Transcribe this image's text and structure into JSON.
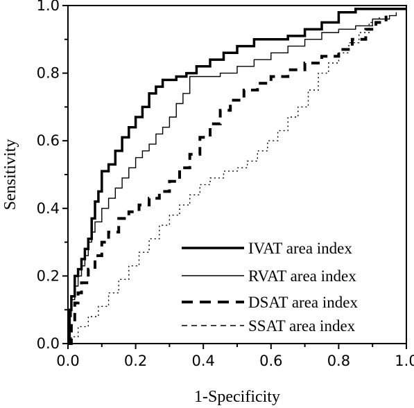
{
  "chart_data": {
    "type": "line",
    "xlabel": "1-Specificity",
    "ylabel": "Sensitivity",
    "xlim": [
      0.0,
      1.0
    ],
    "ylim": [
      0.0,
      1.0
    ],
    "x_ticks": [
      "0.0",
      "0.2",
      "0.4",
      "0.6",
      "0.8",
      "1.0"
    ],
    "y_ticks": [
      "0.0",
      "0.2",
      "0.4",
      "0.6",
      "0.8",
      "1.0"
    ],
    "x_tick_values": [
      0.0,
      0.2,
      0.4,
      0.6,
      0.8,
      1.0
    ],
    "y_tick_values": [
      0.0,
      0.2,
      0.4,
      0.6,
      0.8,
      1.0
    ],
    "grid": false,
    "legend_position": "bottom-right",
    "series": [
      {
        "name": "IVAT area index",
        "style": "thick-solid",
        "points": [
          [
            0,
            0
          ],
          [
            0.005,
            0.1
          ],
          [
            0.01,
            0.14
          ],
          [
            0.02,
            0.2
          ],
          [
            0.03,
            0.22
          ],
          [
            0.04,
            0.25
          ],
          [
            0.05,
            0.28
          ],
          [
            0.06,
            0.31
          ],
          [
            0.07,
            0.37
          ],
          [
            0.08,
            0.42
          ],
          [
            0.09,
            0.45
          ],
          [
            0.1,
            0.51
          ],
          [
            0.12,
            0.53
          ],
          [
            0.14,
            0.57
          ],
          [
            0.16,
            0.61
          ],
          [
            0.18,
            0.64
          ],
          [
            0.2,
            0.67
          ],
          [
            0.22,
            0.7
          ],
          [
            0.24,
            0.74
          ],
          [
            0.26,
            0.76
          ],
          [
            0.28,
            0.78
          ],
          [
            0.32,
            0.79
          ],
          [
            0.35,
            0.8
          ],
          [
            0.38,
            0.82
          ],
          [
            0.42,
            0.84
          ],
          [
            0.46,
            0.86
          ],
          [
            0.5,
            0.88
          ],
          [
            0.55,
            0.9
          ],
          [
            0.6,
            0.9
          ],
          [
            0.65,
            0.91
          ],
          [
            0.7,
            0.93
          ],
          [
            0.75,
            0.95
          ],
          [
            0.8,
            0.98
          ],
          [
            0.85,
            0.99
          ],
          [
            1.0,
            0.99
          ]
        ]
      },
      {
        "name": "RVAT area index",
        "style": "thin-solid",
        "points": [
          [
            0,
            0
          ],
          [
            0.005,
            0.08
          ],
          [
            0.01,
            0.13
          ],
          [
            0.02,
            0.17
          ],
          [
            0.03,
            0.2
          ],
          [
            0.04,
            0.23
          ],
          [
            0.05,
            0.26
          ],
          [
            0.06,
            0.3
          ],
          [
            0.07,
            0.33
          ],
          [
            0.08,
            0.36
          ],
          [
            0.1,
            0.4
          ],
          [
            0.12,
            0.43
          ],
          [
            0.14,
            0.46
          ],
          [
            0.16,
            0.49
          ],
          [
            0.18,
            0.52
          ],
          [
            0.2,
            0.55
          ],
          [
            0.22,
            0.57
          ],
          [
            0.24,
            0.59
          ],
          [
            0.26,
            0.62
          ],
          [
            0.28,
            0.64
          ],
          [
            0.3,
            0.67
          ],
          [
            0.32,
            0.71
          ],
          [
            0.34,
            0.74
          ],
          [
            0.36,
            0.79
          ],
          [
            0.4,
            0.79
          ],
          [
            0.45,
            0.8
          ],
          [
            0.5,
            0.82
          ],
          [
            0.55,
            0.84
          ],
          [
            0.6,
            0.86
          ],
          [
            0.65,
            0.88
          ],
          [
            0.7,
            0.9
          ],
          [
            0.75,
            0.92
          ],
          [
            0.8,
            0.93
          ],
          [
            0.85,
            0.94
          ],
          [
            0.9,
            0.96
          ],
          [
            0.95,
            0.97
          ],
          [
            0.97,
            0.98
          ]
        ]
      },
      {
        "name": "DSAT area index",
        "style": "thick-dashed",
        "points": [
          [
            0,
            0
          ],
          [
            0.01,
            0.07
          ],
          [
            0.02,
            0.12
          ],
          [
            0.03,
            0.15
          ],
          [
            0.04,
            0.18
          ],
          [
            0.06,
            0.22
          ],
          [
            0.08,
            0.26
          ],
          [
            0.1,
            0.3
          ],
          [
            0.12,
            0.33
          ],
          [
            0.15,
            0.37
          ],
          [
            0.18,
            0.39
          ],
          [
            0.21,
            0.41
          ],
          [
            0.24,
            0.43
          ],
          [
            0.27,
            0.45
          ],
          [
            0.3,
            0.48
          ],
          [
            0.33,
            0.52
          ],
          [
            0.36,
            0.56
          ],
          [
            0.39,
            0.61
          ],
          [
            0.42,
            0.65
          ],
          [
            0.45,
            0.69
          ],
          [
            0.48,
            0.72
          ],
          [
            0.52,
            0.75
          ],
          [
            0.56,
            0.77
          ],
          [
            0.6,
            0.79
          ],
          [
            0.65,
            0.81
          ],
          [
            0.7,
            0.83
          ],
          [
            0.75,
            0.85
          ],
          [
            0.8,
            0.87
          ],
          [
            0.84,
            0.9
          ],
          [
            0.88,
            0.93
          ],
          [
            0.91,
            0.95
          ],
          [
            0.94,
            0.97
          ]
        ]
      },
      {
        "name": "SSAT area index",
        "style": "thin-dashed",
        "points": [
          [
            0,
            0
          ],
          [
            0.01,
            0.02
          ],
          [
            0.03,
            0.05
          ],
          [
            0.06,
            0.08
          ],
          [
            0.09,
            0.11
          ],
          [
            0.12,
            0.15
          ],
          [
            0.15,
            0.19
          ],
          [
            0.18,
            0.23
          ],
          [
            0.21,
            0.27
          ],
          [
            0.24,
            0.31
          ],
          [
            0.27,
            0.35
          ],
          [
            0.3,
            0.38
          ],
          [
            0.33,
            0.41
          ],
          [
            0.36,
            0.44
          ],
          [
            0.39,
            0.47
          ],
          [
            0.42,
            0.49
          ],
          [
            0.46,
            0.51
          ],
          [
            0.5,
            0.52
          ],
          [
            0.53,
            0.54
          ],
          [
            0.56,
            0.57
          ],
          [
            0.59,
            0.6
          ],
          [
            0.62,
            0.63
          ],
          [
            0.65,
            0.67
          ],
          [
            0.68,
            0.7
          ],
          [
            0.71,
            0.75
          ],
          [
            0.74,
            0.8
          ],
          [
            0.77,
            0.83
          ],
          [
            0.8,
            0.86
          ],
          [
            0.83,
            0.89
          ],
          [
            0.86,
            0.92
          ],
          [
            0.89,
            0.95
          ],
          [
            0.92,
            0.97
          ]
        ]
      }
    ]
  }
}
